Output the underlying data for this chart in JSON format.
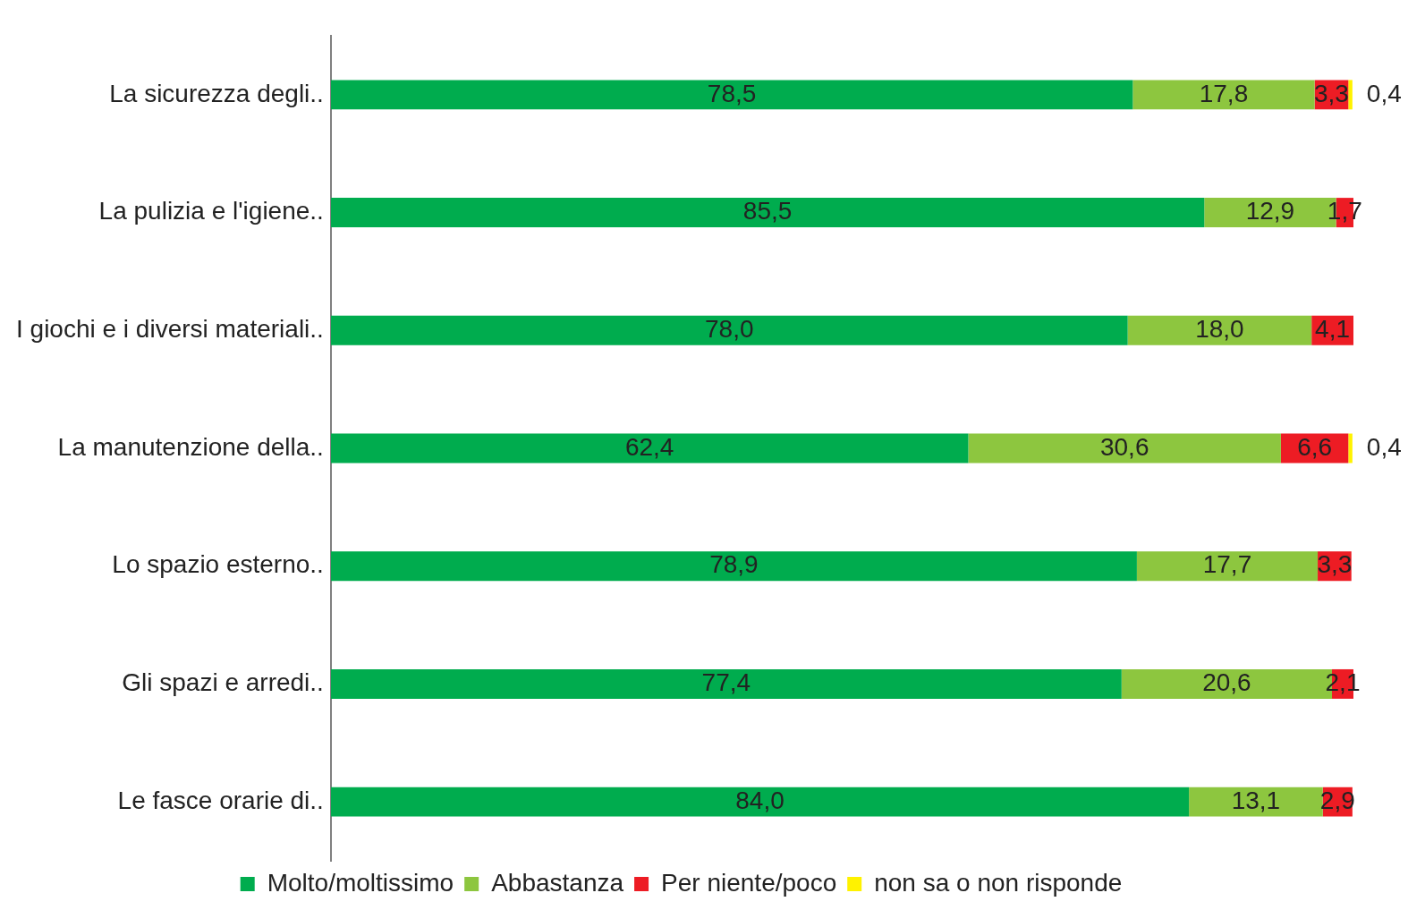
{
  "chart_data": {
    "type": "bar",
    "orientation": "horizontal",
    "stacked": true,
    "categories": [
      "La sicurezza degli..",
      "La pulizia e l'igiene..",
      "I giochi e i diversi materiali..",
      "La manutenzione della..",
      "Lo spazio esterno..",
      "Gli spazi e arredi..",
      "Le fasce orarie di.."
    ],
    "series": [
      {
        "name": "Molto/moltissimo",
        "color": "#00ac4e",
        "values": [
          78.5,
          85.5,
          78.0,
          62.4,
          78.9,
          77.4,
          84.0
        ],
        "value_labels": [
          "78,5",
          "85,5",
          "78,0",
          "62,4",
          "78,9",
          "77,4",
          "84,0"
        ]
      },
      {
        "name": "Abbastanza",
        "color": "#8dc63f",
        "values": [
          17.8,
          12.9,
          18.0,
          30.6,
          17.7,
          20.6,
          13.1
        ],
        "value_labels": [
          "17,8",
          "12,9",
          "18,0",
          "30,6",
          "17,7",
          "20,6",
          "13,1"
        ]
      },
      {
        "name": "Per niente/poco",
        "color": "#ed1c24",
        "values": [
          3.3,
          1.7,
          4.1,
          6.6,
          3.3,
          2.1,
          2.9
        ],
        "value_labels": [
          "3,3",
          "1,7",
          "4,1",
          "6,6",
          "3,3",
          "2,1",
          "2,9"
        ]
      },
      {
        "name": "non sa o non risponde",
        "color": "#fff200",
        "values": [
          0.4,
          null,
          null,
          0.4,
          null,
          null,
          null
        ],
        "value_labels": [
          "0,4",
          null,
          null,
          "0,4",
          null,
          null,
          null
        ]
      }
    ],
    "tick_labels": "y",
    "grid": false,
    "legend": "bottom"
  }
}
